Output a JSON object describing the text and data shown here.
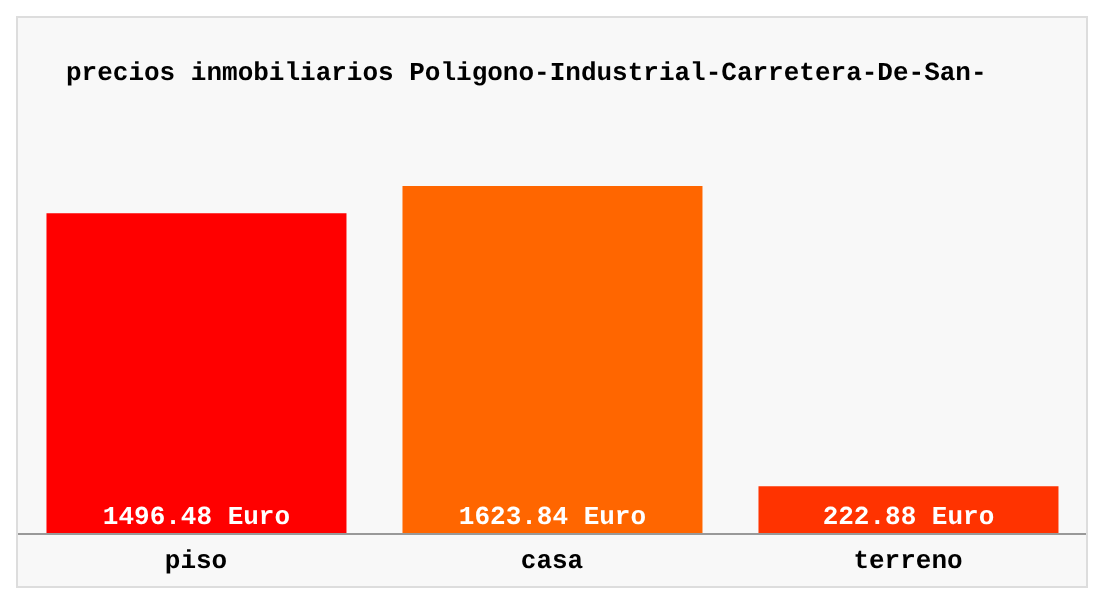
{
  "chart_data": {
    "type": "bar",
    "title": "precios inmobiliarios Poligono-Industrial-Carretera-De-San-",
    "categories": [
      "piso",
      "casa",
      "terreno"
    ],
    "values": [
      1496.48,
      1623.84,
      222.88
    ],
    "colors": [
      "#ff0000",
      "#ff6600",
      "#ff3300"
    ],
    "value_labels": [
      "1496.48 Euro",
      "1623.84 Euro",
      "222.88 Euro"
    ],
    "grid": false,
    "legend": false
  }
}
